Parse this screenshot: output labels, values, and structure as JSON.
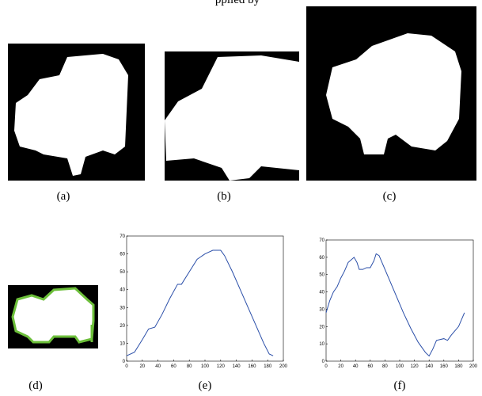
{
  "caption_fragment": "pplied by",
  "panels": [
    {
      "label": "(a)"
    },
    {
      "label": "(b)"
    },
    {
      "label": "(c)"
    },
    {
      "label": "(d)"
    }
  ],
  "chart_data": [
    {
      "type": "line",
      "label": "(e)",
      "color": "#2a4ea8",
      "x": [
        0,
        10,
        20,
        28,
        36,
        45,
        55,
        65,
        70,
        80,
        90,
        100,
        110,
        120,
        125,
        135,
        145,
        155,
        165,
        175,
        182,
        187
      ],
      "values": [
        3,
        5,
        12,
        18,
        19,
        26,
        35,
        43,
        43,
        50,
        57,
        60,
        62,
        62,
        59,
        50,
        40,
        30,
        20,
        10,
        4,
        3
      ],
      "xlim": [
        0,
        200
      ],
      "ylim": [
        0,
        70
      ],
      "xticks": [
        0,
        20,
        40,
        60,
        80,
        100,
        120,
        140,
        160,
        180,
        200
      ],
      "yticks": [
        0,
        10,
        20,
        30,
        40,
        50,
        60,
        70
      ]
    },
    {
      "type": "line",
      "label": "(f)",
      "color": "#2a4ea8",
      "x": [
        0,
        5,
        10,
        15,
        20,
        25,
        30,
        38,
        42,
        45,
        50,
        55,
        60,
        65,
        68,
        72,
        78,
        85,
        95,
        105,
        115,
        125,
        135,
        140,
        145,
        150,
        160,
        165,
        170,
        180,
        188
      ],
      "values": [
        28,
        35,
        40,
        43,
        48,
        52,
        57,
        60,
        57,
        53,
        53,
        54,
        54,
        58,
        62,
        61,
        55,
        48,
        38,
        28,
        19,
        11,
        5,
        3,
        7,
        12,
        13,
        12,
        15,
        20,
        28
      ],
      "xlim": [
        0,
        200
      ],
      "ylim": [
        0,
        70
      ],
      "xticks": [
        0,
        20,
        40,
        60,
        80,
        100,
        120,
        140,
        160,
        180,
        200
      ],
      "yticks": [
        0,
        10,
        20,
        30,
        40,
        50,
        60,
        70
      ]
    }
  ]
}
